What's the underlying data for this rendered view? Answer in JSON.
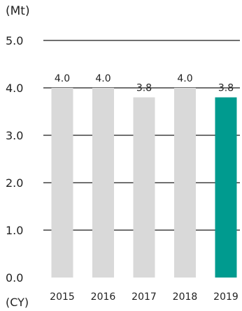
{
  "chart_data": {
    "type": "bar",
    "unit_label": "(Mt)",
    "x_unit_label": "(CY)",
    "categories": [
      "2015",
      "2016",
      "2017",
      "2018",
      "2019"
    ],
    "values": [
      4.0,
      4.0,
      3.8,
      4.0,
      3.8
    ],
    "value_labels": [
      "4.0",
      "4.0",
      "3.8",
      "4.0",
      "3.8"
    ],
    "y_ticks": [
      "0.0",
      "1.0",
      "2.0",
      "3.0",
      "4.0",
      "5.0"
    ],
    "ylim": [
      0,
      5
    ],
    "grid": true,
    "colors": {
      "default_bar": "#d9d9d9",
      "highlight_bar": "#009b8f",
      "gridline": "#1a1a1a",
      "text": "#222222"
    },
    "highlight_index": 4
  }
}
